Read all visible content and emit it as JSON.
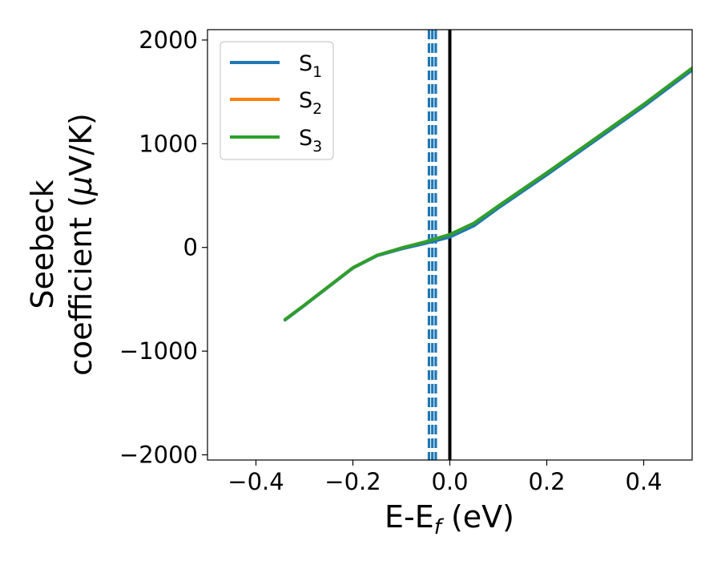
{
  "chart_data": {
    "type": "line",
    "title": "",
    "xlabel": "E-E",
    "xlabel_sub": "f",
    "xlabel_unit": " (eV)",
    "ylabel_line1": "Seebeck",
    "ylabel_line2": "coefficient  (",
    "ylabel_mu": "μ",
    "ylabel_unit": "V/K)",
    "xlim": [
      -0.5,
      0.5
    ],
    "ylim": [
      -2050,
      2100
    ],
    "xticks": [
      -0.4,
      -0.2,
      0.0,
      0.2,
      0.4
    ],
    "xtick_labels": [
      "−0.4",
      "−0.2",
      "0.0",
      "0.2",
      "0.4"
    ],
    "yticks": [
      -2000,
      -1000,
      0,
      1000,
      2000
    ],
    "ytick_labels": [
      "−2000",
      "−1000",
      "0",
      "1000",
      "2000"
    ],
    "grid": false,
    "legend_position": "upper-left",
    "series": [
      {
        "name": "S",
        "sub": "1",
        "color": "#1f77b4",
        "x": [
          -0.34,
          -0.3,
          -0.25,
          -0.2,
          -0.15,
          -0.1,
          -0.05,
          0.0,
          0.05,
          0.1,
          0.2,
          0.3,
          0.4,
          0.5
        ],
        "y": [
          -700,
          -560,
          -380,
          -200,
          -80,
          -15,
          40,
          100,
          210,
          380,
          700,
          1030,
          1360,
          1710
        ]
      },
      {
        "name": "S",
        "sub": "2",
        "color": "#ff7f0e",
        "x": [
          -0.34,
          -0.3,
          -0.25,
          -0.2,
          -0.15,
          -0.1,
          -0.05,
          0.0,
          0.05,
          0.1,
          0.2,
          0.3,
          0.4,
          0.5
        ],
        "y": [
          -695,
          -555,
          -375,
          -195,
          -75,
          -5,
          55,
          125,
          235,
          400,
          720,
          1050,
          1380,
          1730
        ]
      },
      {
        "name": "S",
        "sub": "3",
        "color": "#2ca02c",
        "x": [
          -0.34,
          -0.3,
          -0.25,
          -0.2,
          -0.15,
          -0.1,
          -0.05,
          0.0,
          0.05,
          0.1,
          0.2,
          0.3,
          0.4,
          0.5
        ],
        "y": [
          -695,
          -555,
          -375,
          -195,
          -75,
          -5,
          55,
          125,
          235,
          400,
          720,
          1050,
          1380,
          1730
        ]
      }
    ],
    "vlines": [
      {
        "x": 0.0,
        "style": "solid",
        "color": "#000000"
      },
      {
        "x": -0.043,
        "style": "dashed",
        "color": "#1f77b4"
      },
      {
        "x": -0.036,
        "style": "dashed",
        "color": "#1f77b4"
      },
      {
        "x": -0.029,
        "style": "dashed",
        "color": "#1f77b4"
      }
    ]
  }
}
